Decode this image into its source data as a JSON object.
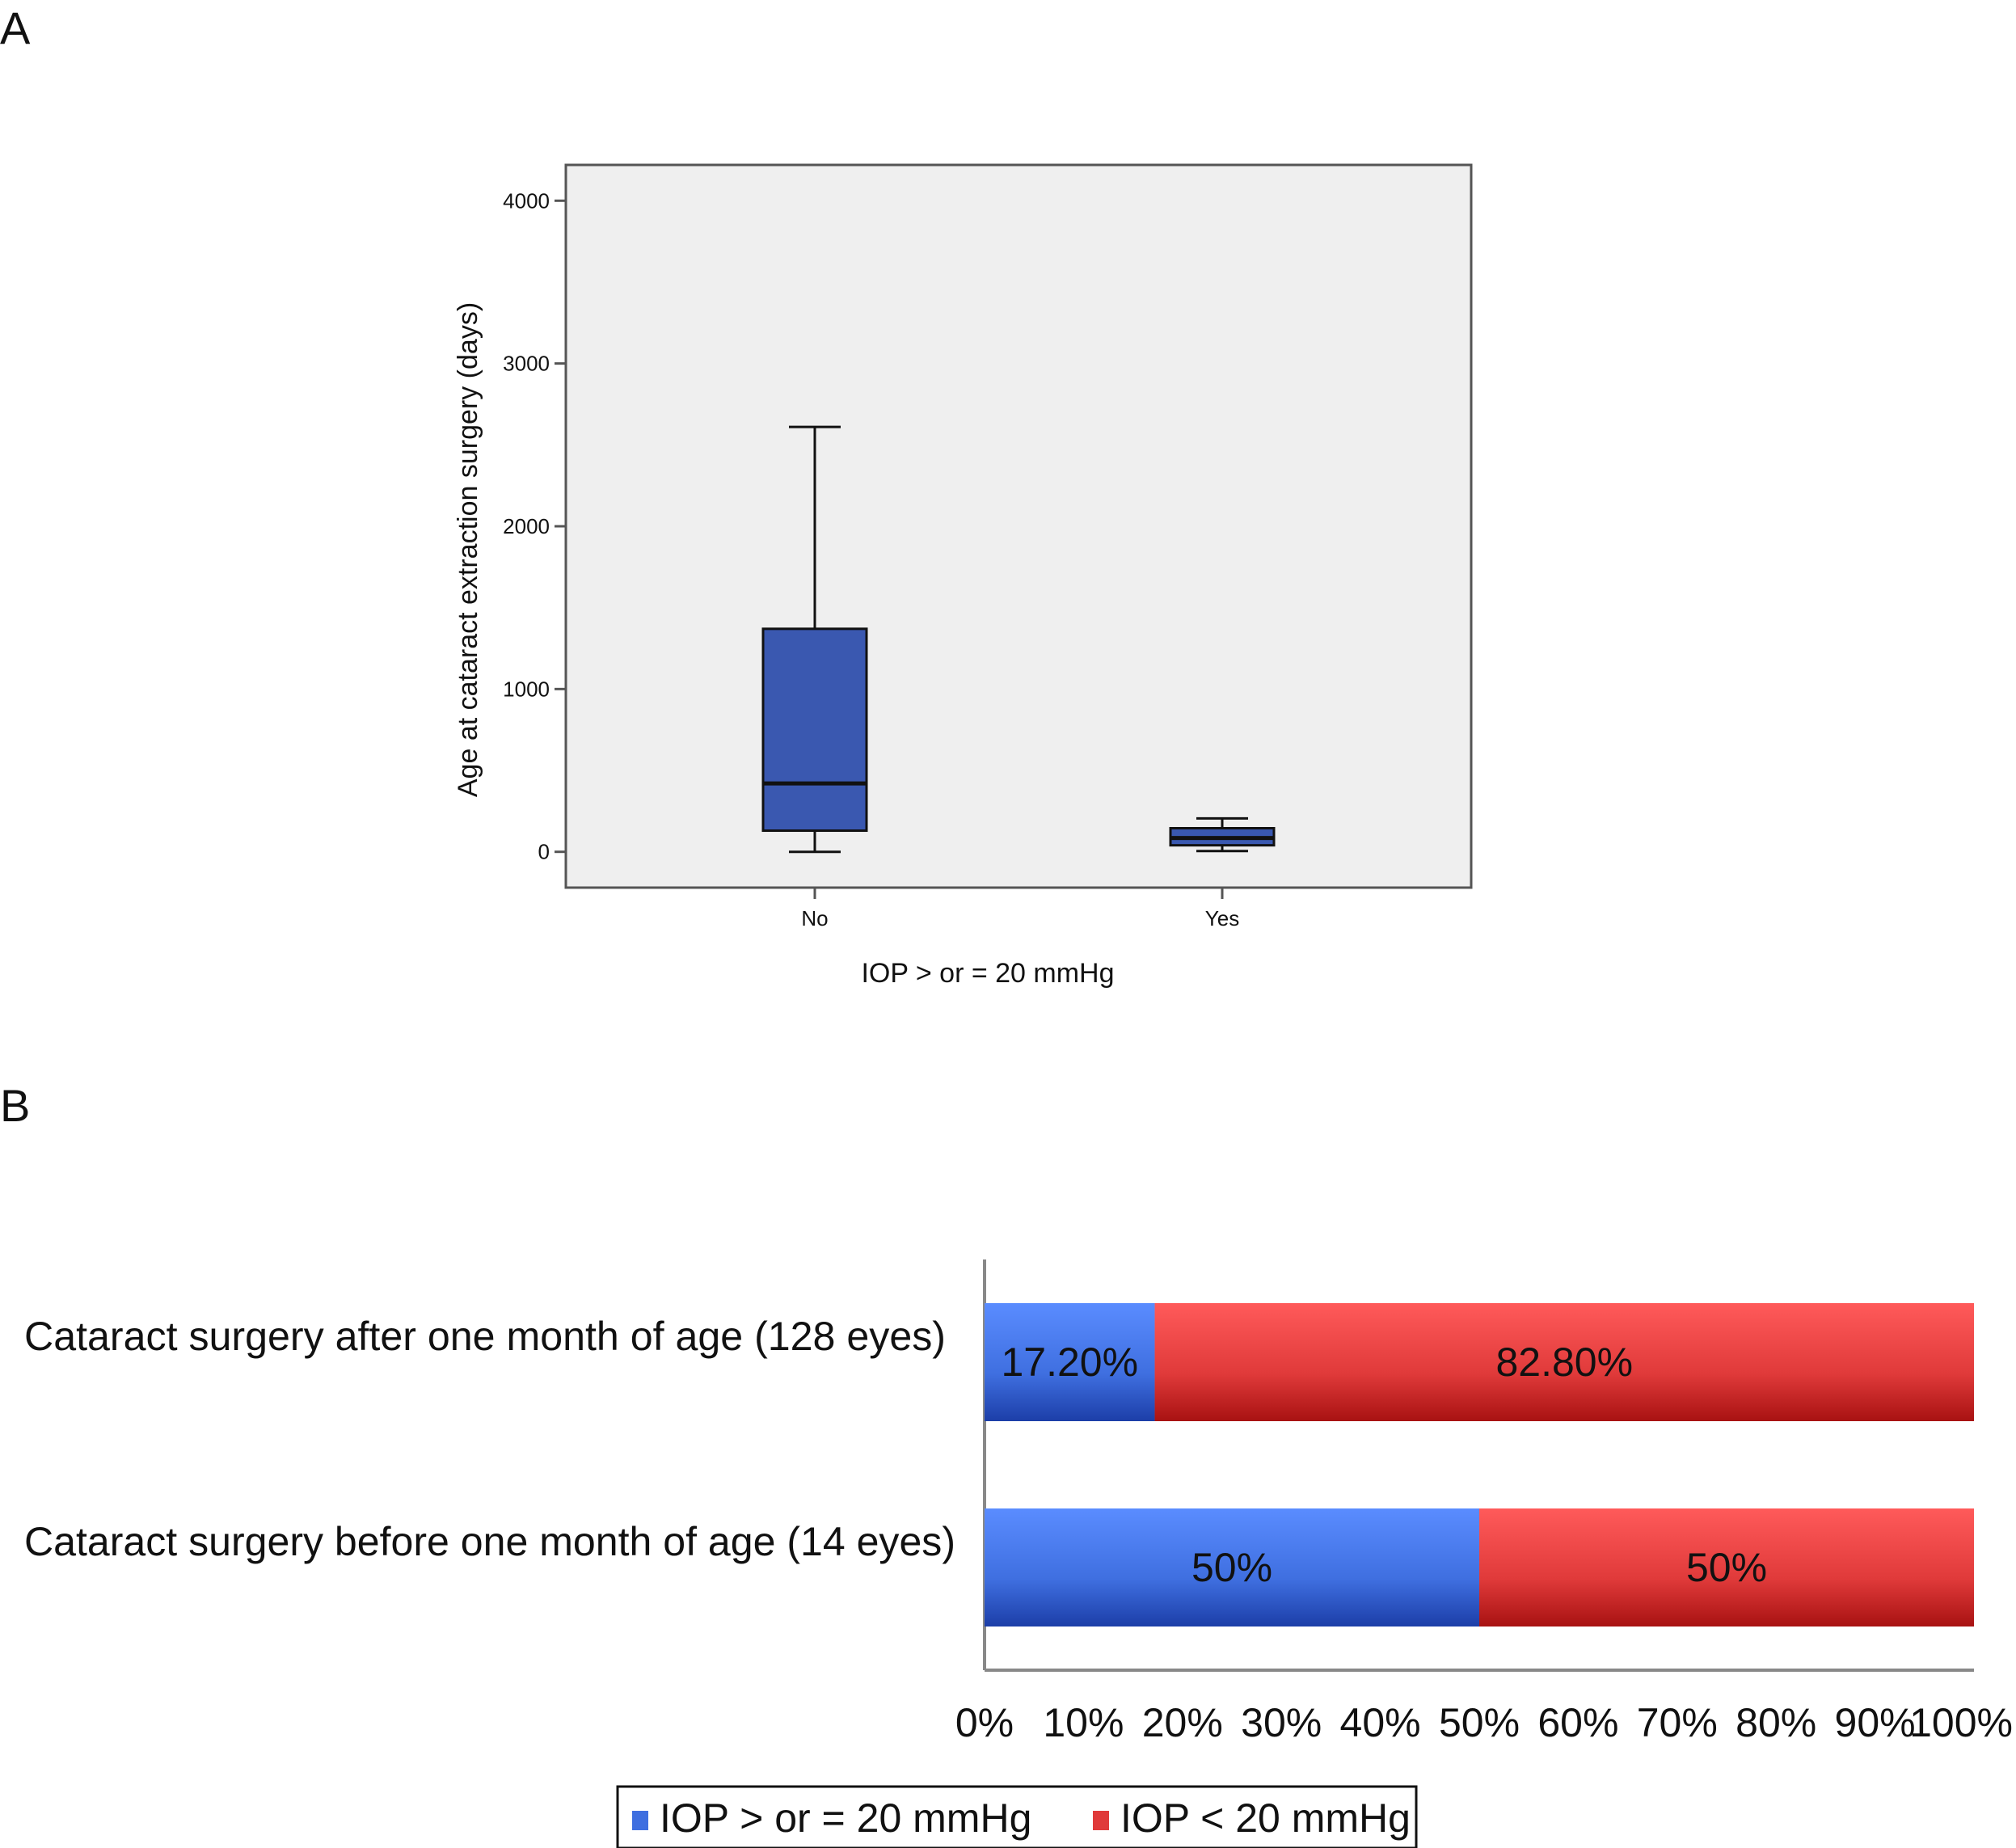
{
  "panels": {
    "a_label": "A",
    "b_label": "B"
  },
  "chart_data": [
    {
      "type": "boxplot",
      "xlabel": "IOP > or = 20 mmHg",
      "ylabel": "Age at cataract extraction surgery (days)",
      "ylim": [
        -220,
        4220
      ],
      "yticks": [
        "0",
        "1000",
        "2000",
        "3000",
        "4000"
      ],
      "ytick_values": [
        0,
        1000,
        2000,
        3000,
        4000
      ],
      "grid": false,
      "box_color": "#3a58b0",
      "plot_bg": "#efefef",
      "groups": [
        {
          "category": "No",
          "min": 0,
          "q1": 130,
          "median": 420,
          "q3": 1370,
          "max": 2610
        },
        {
          "category": "Yes",
          "min": 5,
          "q1": 40,
          "median": 85,
          "q3": 145,
          "max": 205
        }
      ]
    },
    {
      "type": "bar",
      "orientation": "horizontal",
      "stacked": true,
      "categories": [
        "Cataract surgery after one month of age (128 eyes)",
        "Cataract surgery before one month of age (14 eyes)"
      ],
      "series": [
        {
          "name": "IOP > or = 20 mmHg",
          "values": [
            17.2,
            50
          ],
          "labels": [
            "17.20%",
            "50%"
          ],
          "color": "#3f6fe0"
        },
        {
          "name": "IOP < 20 mmHg",
          "values": [
            82.8,
            50
          ],
          "labels": [
            "82.80%",
            "50%"
          ],
          "color": "#e03a3a"
        }
      ],
      "xlim": [
        0,
        100
      ],
      "xticks": [
        "0%",
        "10%",
        "20%",
        "30%",
        "40%",
        "50%",
        "60%",
        "70%",
        "80%",
        "90%",
        "100%"
      ],
      "legend_position": "bottom",
      "grid": false
    }
  ]
}
